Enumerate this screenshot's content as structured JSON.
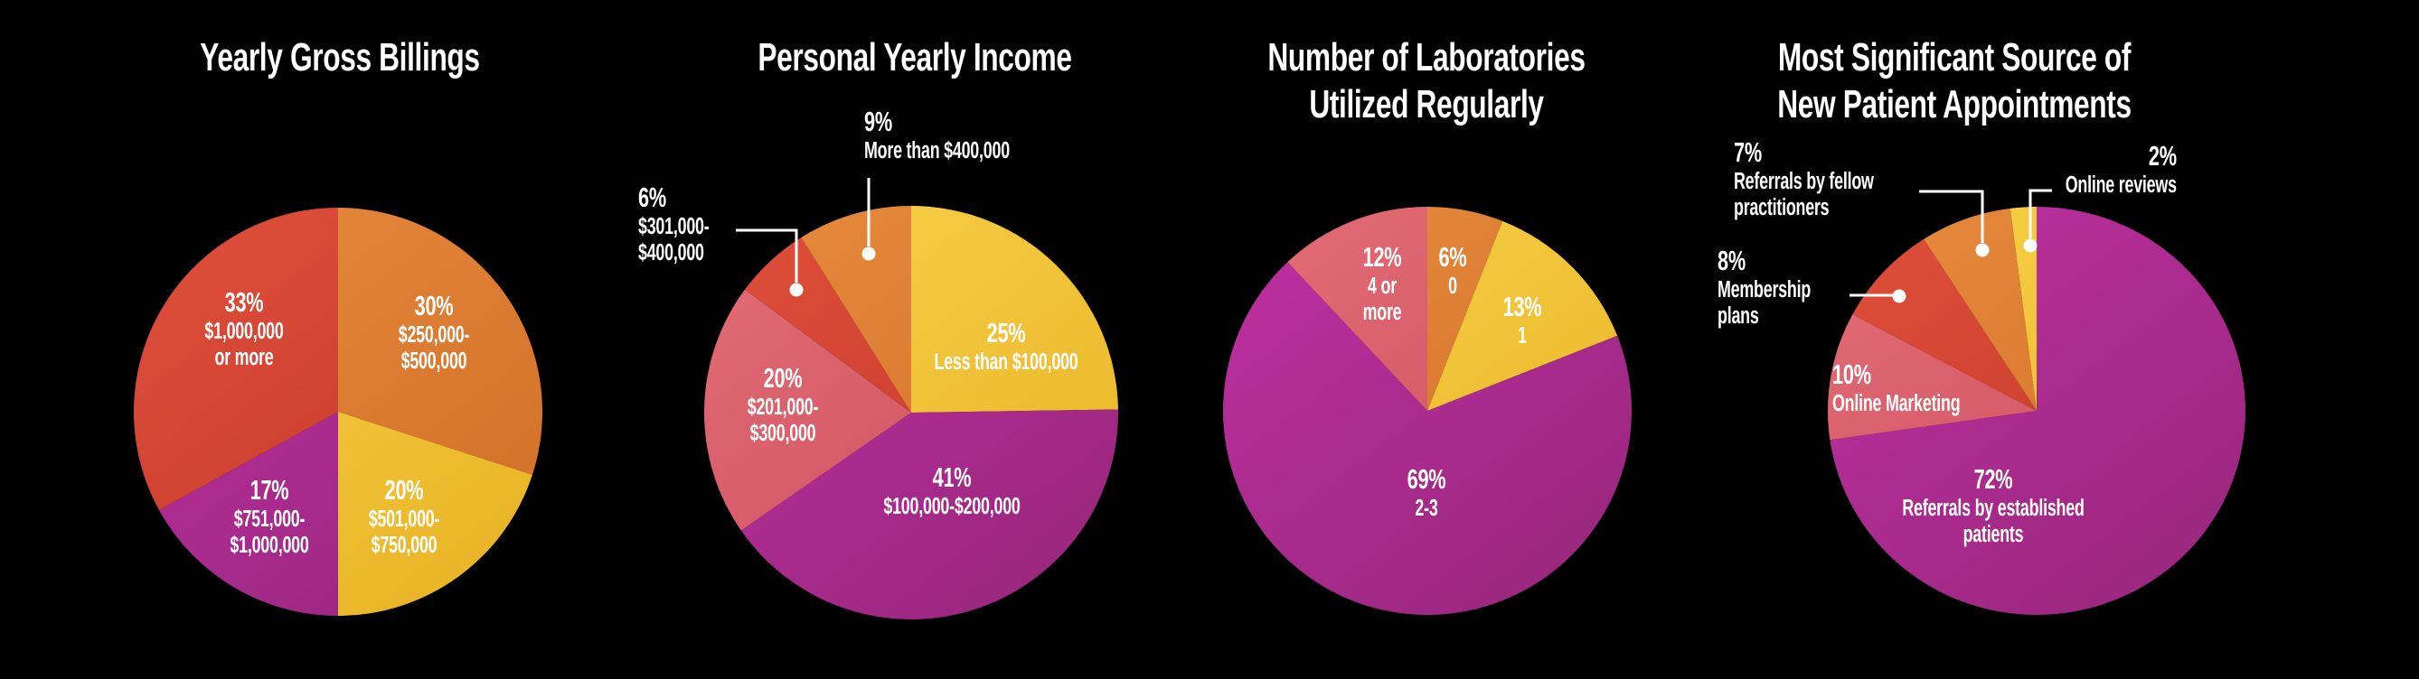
{
  "page": {
    "background": "#000000",
    "text_color": "#ffffff",
    "description": "Infographic with four pie charts"
  },
  "palette": {
    "red": "#cf4130",
    "orange": "#dc7e33",
    "yellow": "#f2c433",
    "magenta": "#ab2b8e",
    "salmon": "#d75f68",
    "leader_line": "#ffffff"
  },
  "chart_data": [
    {
      "type": "pie",
      "title": "Yearly Gross Billings",
      "slices": [
        {
          "pct_label": "30%",
          "value": 30,
          "label": "$250,000-\n$500,000",
          "color": "orange"
        },
        {
          "pct_label": "20%",
          "value": 20,
          "label": "$501,000-\n$750,000",
          "color": "yellow"
        },
        {
          "pct_label": "17%",
          "value": 17,
          "label": "$751,000-\n$1,000,000",
          "color": "magenta"
        },
        {
          "pct_label": "33%",
          "value": 33,
          "label": "$1,000,000\nor more",
          "color": "red"
        }
      ]
    },
    {
      "type": "pie",
      "title": "Personal Yearly Income",
      "slices": [
        {
          "pct_label": "25%",
          "value": 25,
          "label": "Less than $100,000",
          "color": "yellow"
        },
        {
          "pct_label": "41%",
          "value": 41,
          "label": "$100,000-$200,000",
          "color": "magenta"
        },
        {
          "pct_label": "20%",
          "value": 20,
          "label": "$201,000-\n$300,000",
          "color": "salmon"
        },
        {
          "pct_label": "6%",
          "value": 6,
          "label": "$301,000-\n$400,000",
          "color": "red"
        },
        {
          "pct_label": "9%",
          "value": 9,
          "label": "More than $400,000",
          "color": "orange"
        }
      ]
    },
    {
      "type": "pie",
      "title": "Number of Laboratories\nUtilized Regularly",
      "slices": [
        {
          "pct_label": "6%",
          "value": 6,
          "label": "0",
          "color": "orange"
        },
        {
          "pct_label": "13%",
          "value": 13,
          "label": "1",
          "color": "yellow"
        },
        {
          "pct_label": "69%",
          "value": 69,
          "label": "2-3",
          "color": "magenta"
        },
        {
          "pct_label": "12%",
          "value": 12,
          "label": "4 or\nmore",
          "color": "salmon"
        }
      ]
    },
    {
      "type": "pie",
      "title": "Most Significant Source of\nNew Patient Appointments",
      "slices": [
        {
          "pct_label": "72%",
          "value": 72,
          "label": "Referrals by established patients",
          "color": "magenta"
        },
        {
          "pct_label": "10%",
          "value": 10,
          "label": "Online Marketing",
          "color": "salmon"
        },
        {
          "pct_label": "8%",
          "value": 8,
          "label": "Membership\nplans",
          "color": "red"
        },
        {
          "pct_label": "7%",
          "value": 7,
          "label": "Referrals by fellow\npractitioners",
          "color": "orange"
        },
        {
          "pct_label": "2%",
          "value": 2,
          "label": "Online reviews",
          "color": "yellow"
        }
      ]
    }
  ]
}
